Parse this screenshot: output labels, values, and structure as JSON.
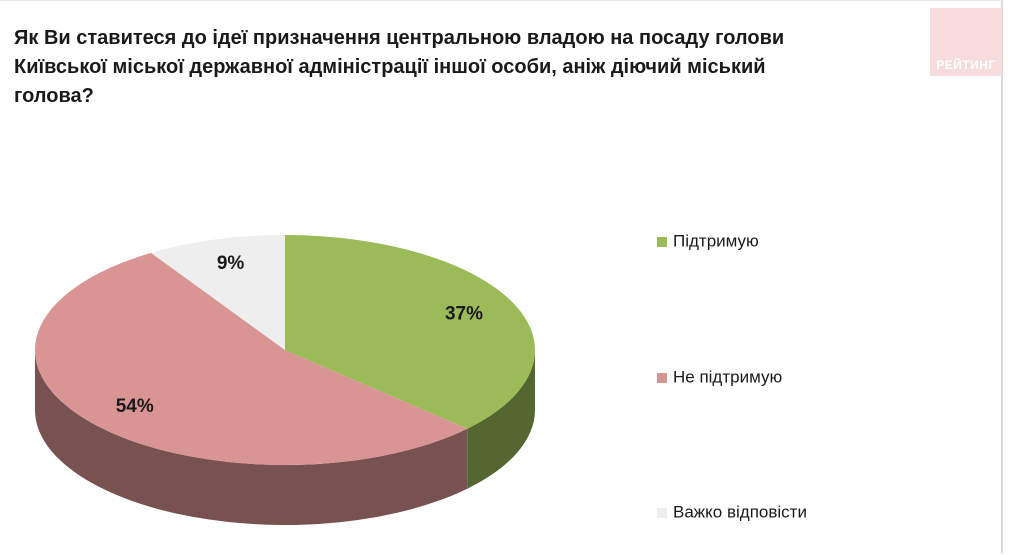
{
  "logo": "РЕЙТИНГ",
  "chart_data": {
    "type": "pie",
    "title": "Як Ви ставитеся до ідеї призначення центральною владою на посаду голови Київської міської державної адміністрації іншої особи, аніж діючий міський голова?",
    "categories": [
      "Підтримую",
      "Не підтримую",
      "Важко відповісти"
    ],
    "values": [
      37,
      54,
      9
    ],
    "value_labels": [
      "37%",
      "54%",
      "9%"
    ],
    "colors": [
      "#9bbb59",
      "#d99594",
      "#eeeeee"
    ],
    "legend": "right"
  }
}
